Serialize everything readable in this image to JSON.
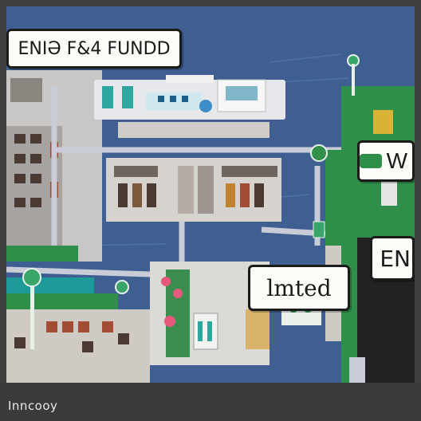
{
  "labels": {
    "top_left": "ENIƏ F&4 FUNDD",
    "middle": "lmted",
    "right_mid": "W",
    "right_lower": "EN",
    "footer": "Inncooy"
  },
  "colors": {
    "water": "#3f5f93",
    "land_green": "#2f8f4a",
    "building": "#d6d3cf",
    "road": "#c9ccd6",
    "frame": "#3d3e40"
  }
}
